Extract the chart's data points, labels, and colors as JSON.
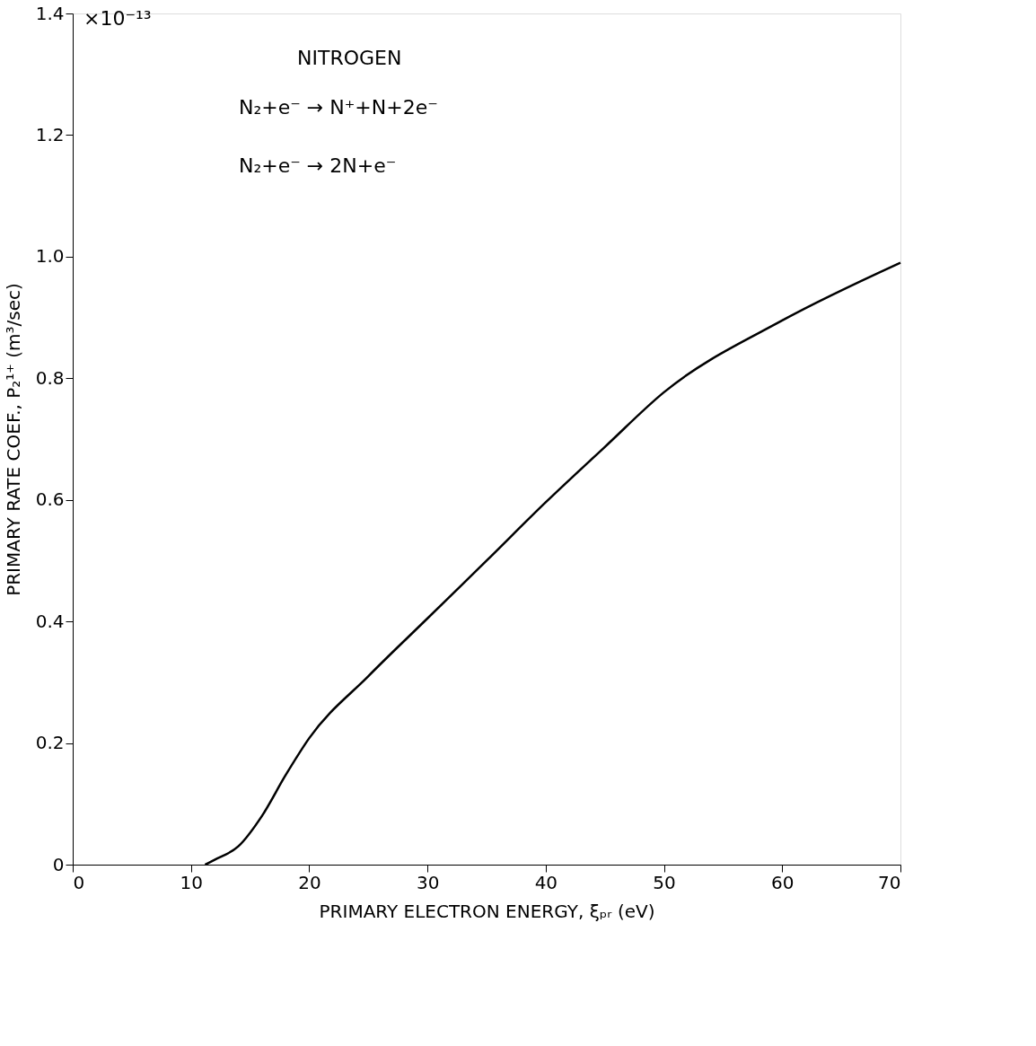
{
  "chart_data": {
    "type": "line",
    "xlabel": "PRIMARY  ELECTRON ENERGY, ξₚᵣ (eV)",
    "ylabel": "PRIMARY RATE  COEF.,  P₂¹⁺ (m³/sec)",
    "annotations": [
      "×10⁻¹³",
      "NITROGEN",
      "N₂+e⁻ → N⁺+N+2e⁻",
      "N₂+e⁻ → 2N+e⁻"
    ],
    "series": [
      {
        "color": "#000000",
        "x": [
          11.2,
          12,
          14,
          16,
          18,
          20,
          25,
          30,
          35,
          40,
          45,
          50,
          60,
          70
        ],
        "values": [
          0,
          0.008,
          0.03,
          0.08,
          0.147,
          0.208,
          0.31,
          0.405,
          0.5,
          0.596,
          0.687,
          0.777,
          0.895,
          0.99
        ]
      }
    ],
    "xlim": [
      0,
      70
    ],
    "ylim": [
      0,
      1.4
    ],
    "xticks": [
      0,
      10,
      20,
      30,
      40,
      50,
      60,
      70
    ],
    "yticks": [
      0,
      0.2,
      0.4,
      0.6,
      0.8,
      {
        "value": 1,
        "label": "1.0"
      },
      1.2,
      1.4
    ],
    "grid": false,
    "marker": "none",
    "line_style": "solid"
  }
}
